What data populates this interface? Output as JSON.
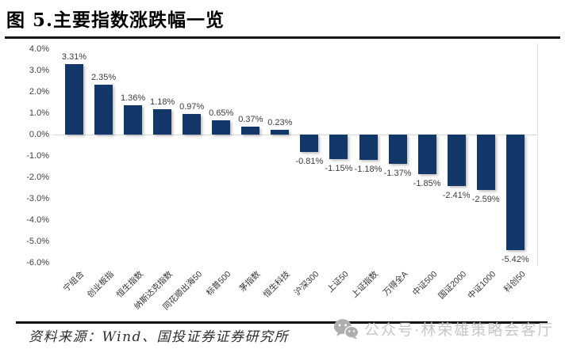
{
  "figure": {
    "title": "图 5.主要指数涨跌幅一览",
    "source": "资料来源：Wind、国投证券证券研究所",
    "watermark_text": "公众号·林荣雄策略会客厅",
    "watermark_icon": "wechat-icon"
  },
  "chart_data": {
    "type": "bar",
    "title": "主要指数涨跌幅一览",
    "categories": [
      "宁组合",
      "创业板指",
      "恒生指数",
      "纳斯达克指数",
      "同花顺出海50",
      "标普500",
      "茅指数",
      "恒生科技",
      "沪深300",
      "上证50",
      "上证指数",
      "万得全A",
      "中证500",
      "国证2000",
      "中证1000",
      "科创50"
    ],
    "values": [
      3.31,
      2.35,
      1.36,
      1.18,
      0.97,
      0.65,
      0.37,
      0.23,
      -0.81,
      -1.15,
      -1.18,
      -1.37,
      -1.85,
      -2.41,
      -2.59,
      -5.42
    ],
    "data_labels": [
      "3.31%",
      "2.35%",
      "1.36%",
      "1.18%",
      "0.97%",
      "0.65%",
      "0.37%",
      "0.23%",
      "-0.81%",
      "-1.15%",
      "-1.18%",
      "-1.37%",
      "-1.85%",
      "-2.41%",
      "-2.59%",
      "-5.42%"
    ],
    "xlabel": "",
    "ylabel": "",
    "ylim": [
      -6.0,
      4.0
    ],
    "ytick_step": 1.0,
    "ytick_labels": [
      "4.0%",
      "3.0%",
      "2.0%",
      "1.0%",
      "0.0%",
      "-1.0%",
      "-2.0%",
      "-3.0%",
      "-4.0%",
      "-5.0%",
      "-6.0%"
    ],
    "grid": false,
    "legend": "none",
    "bar_color": "#133769",
    "zero_line_color": "#d9d9d9"
  }
}
